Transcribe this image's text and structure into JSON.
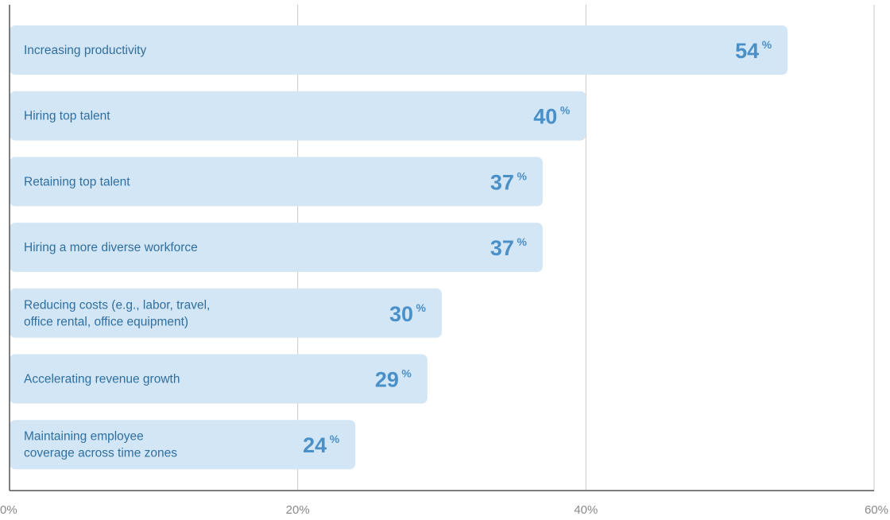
{
  "chart_data": {
    "type": "bar",
    "orientation": "horizontal",
    "categories": [
      "Increasing productivity",
      "Hiring top talent",
      "Retaining top talent",
      "Hiring a more diverse workforce",
      "Reducing costs (e.g., labor, travel,\noffice rental, office equipment)",
      "Accelerating revenue growth",
      "Maintaining employee\ncoverage across time zones"
    ],
    "values": [
      54,
      40,
      37,
      37,
      30,
      29,
      24
    ],
    "value_labels": [
      "54",
      "40",
      "37",
      "37",
      "30",
      "29",
      "24"
    ],
    "value_suffix": "%",
    "xlim": [
      0,
      60
    ],
    "ticks": [
      0,
      20,
      40,
      60
    ],
    "tick_labels": [
      "0%",
      "20%",
      "40%",
      "60%"
    ],
    "grid": true,
    "bar_color": "#d3e6f5",
    "label_color": "#2f6f9f",
    "value_color": "#4a90c8"
  }
}
